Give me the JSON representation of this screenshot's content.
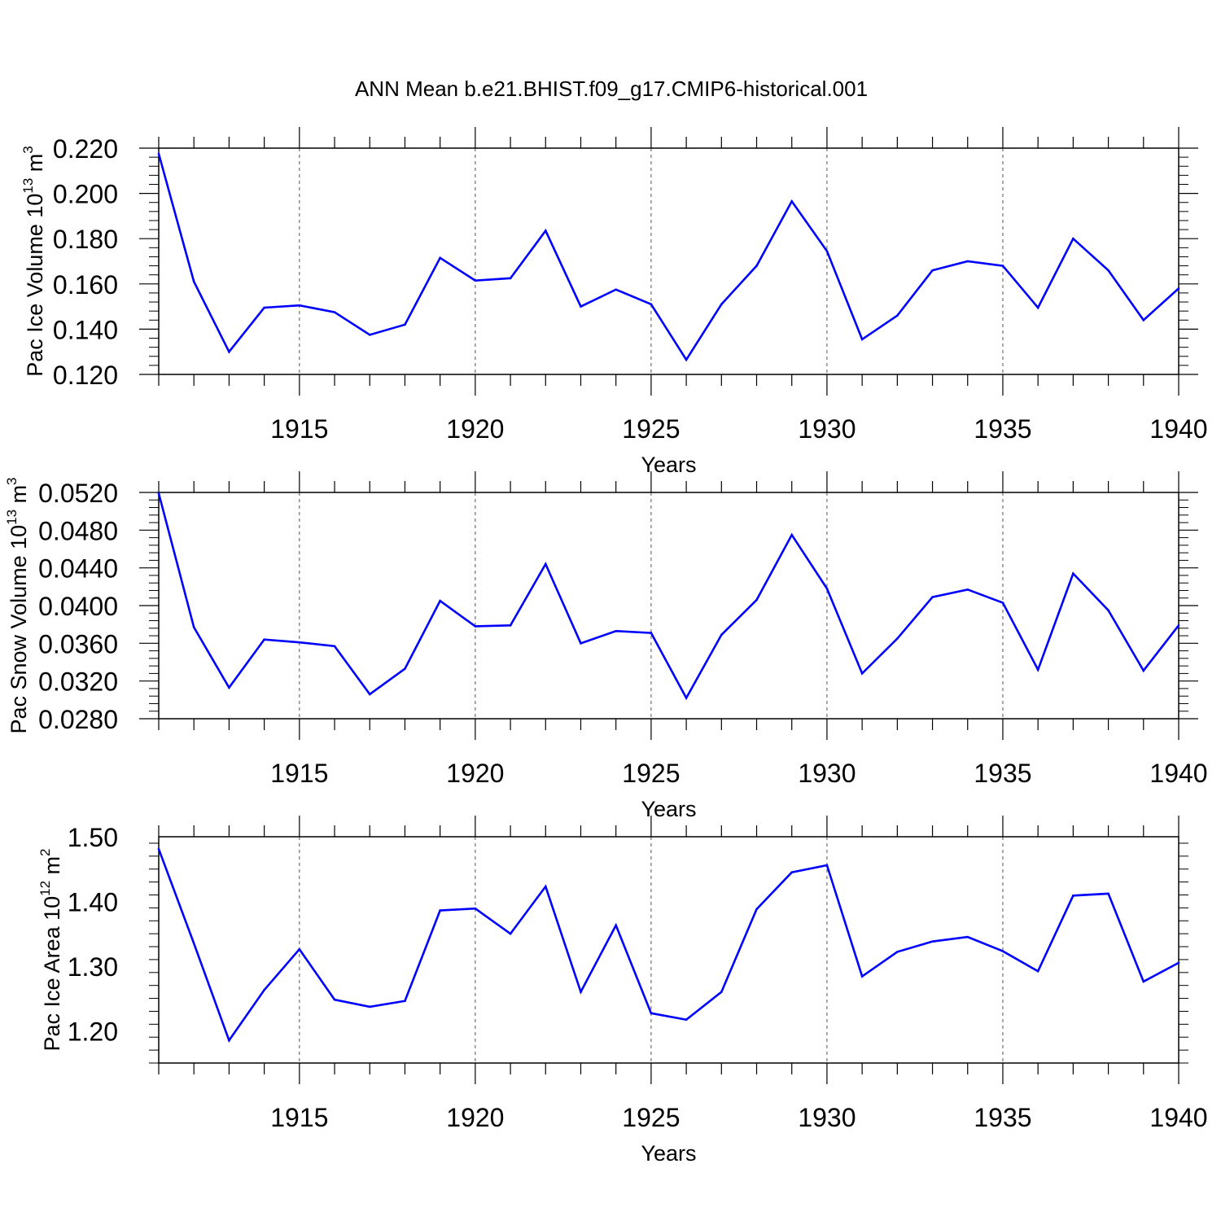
{
  "title": "ANN Mean b.e21.BHIST.f09_g17.CMIP6-historical.001",
  "colors": {
    "line": "#0000ff",
    "axis": "#000000",
    "grid": "#555555"
  },
  "chart_data": [
    {
      "type": "line",
      "name": "ice-volume",
      "ylabel": {
        "main": "Pac Ice Volume 10",
        "sup": "13",
        "unit": " m",
        "unit_sup": "3"
      },
      "xlabel": "Years",
      "xlim": [
        1911,
        1940
      ],
      "ylim": [
        0.12,
        0.22
      ],
      "yticks": [
        0.12,
        0.14,
        0.16,
        0.18,
        0.2,
        0.22
      ],
      "ytick_labels": [
        "0.120",
        "0.140",
        "0.160",
        "0.180",
        "0.200",
        "0.220"
      ],
      "xticks": [
        1915,
        1920,
        1925,
        1930,
        1935,
        1940
      ],
      "xtick_labels": [
        "1915",
        "1920",
        "1925",
        "1930",
        "1935",
        "1940"
      ],
      "x": [
        1911,
        1912,
        1913,
        1914,
        1915,
        1916,
        1917,
        1918,
        1919,
        1920,
        1921,
        1922,
        1923,
        1924,
        1925,
        1926,
        1927,
        1928,
        1929,
        1930,
        1931,
        1932,
        1933,
        1934,
        1935,
        1936,
        1937,
        1938,
        1939,
        1940
      ],
      "series": [
        {
          "name": "Pac Ice Volume",
          "values": [
            0.2175,
            0.161,
            0.13,
            0.1495,
            0.1505,
            0.1475,
            0.1375,
            0.142,
            0.1715,
            0.1615,
            0.1625,
            0.1835,
            0.15,
            0.1575,
            0.151,
            0.1265,
            0.151,
            0.168,
            0.1965,
            0.1745,
            0.1355,
            0.146,
            0.166,
            0.17,
            0.168,
            0.1495,
            0.18,
            0.166,
            0.144,
            0.158
          ]
        }
      ]
    },
    {
      "type": "line",
      "name": "snow-volume",
      "ylabel": {
        "main": "Pac Snow Volume 10",
        "sup": "13",
        "unit": " m",
        "unit_sup": "3"
      },
      "xlabel": "Years",
      "xlim": [
        1911,
        1940
      ],
      "ylim": [
        0.028,
        0.052
      ],
      "yticks": [
        0.028,
        0.032,
        0.036,
        0.04,
        0.044,
        0.048,
        0.052
      ],
      "ytick_labels": [
        "0.0280",
        "0.0320",
        "0.0360",
        "0.0400",
        "0.0440",
        "0.0480",
        "0.0520"
      ],
      "xticks": [
        1915,
        1920,
        1925,
        1930,
        1935,
        1940
      ],
      "xtick_labels": [
        "1915",
        "1920",
        "1925",
        "1930",
        "1935",
        "1940"
      ],
      "x": [
        1911,
        1912,
        1913,
        1914,
        1915,
        1916,
        1917,
        1918,
        1919,
        1920,
        1921,
        1922,
        1923,
        1924,
        1925,
        1926,
        1927,
        1928,
        1929,
        1930,
        1931,
        1932,
        1933,
        1934,
        1935,
        1936,
        1937,
        1938,
        1939,
        1940
      ],
      "series": [
        {
          "name": "Pac Snow Volume",
          "values": [
            0.0519,
            0.0377,
            0.0313,
            0.0364,
            0.0361,
            0.0357,
            0.0306,
            0.0333,
            0.0405,
            0.0378,
            0.0379,
            0.0444,
            0.036,
            0.0373,
            0.0371,
            0.0302,
            0.0369,
            0.0406,
            0.0475,
            0.0418,
            0.0328,
            0.0365,
            0.0409,
            0.0417,
            0.0403,
            0.0332,
            0.0434,
            0.0395,
            0.0331,
            0.0379
          ]
        }
      ]
    },
    {
      "type": "line",
      "name": "ice-area",
      "ylabel": {
        "main": "Pac Ice Area 10",
        "sup": "12",
        "unit": " m",
        "unit_sup": "2"
      },
      "xlabel": "Years",
      "xlim": [
        1911,
        1940
      ],
      "ylim": [
        1.15,
        1.5
      ],
      "yticks": [
        1.2,
        1.3,
        1.4,
        1.5
      ],
      "ytick_labels": [
        "1.20",
        "1.30",
        "1.40",
        "1.50"
      ],
      "xticks": [
        1915,
        1920,
        1925,
        1930,
        1935,
        1940
      ],
      "xtick_labels": [
        "1915",
        "1920",
        "1925",
        "1930",
        "1935",
        "1940"
      ],
      "x": [
        1911,
        1912,
        1913,
        1914,
        1915,
        1916,
        1917,
        1918,
        1919,
        1920,
        1921,
        1922,
        1923,
        1924,
        1925,
        1926,
        1927,
        1928,
        1929,
        1930,
        1931,
        1932,
        1933,
        1934,
        1935,
        1936,
        1937,
        1938,
        1939,
        1940
      ],
      "series": [
        {
          "name": "Pac Ice Area",
          "values": [
            1.481,
            1.335,
            1.185,
            1.263,
            1.326,
            1.248,
            1.237,
            1.246,
            1.386,
            1.389,
            1.35,
            1.423,
            1.26,
            1.363,
            1.227,
            1.217,
            1.26,
            1.388,
            1.445,
            1.456,
            1.284,
            1.322,
            1.338,
            1.345,
            1.323,
            1.292,
            1.409,
            1.412,
            1.276,
            1.305
          ]
        }
      ]
    }
  ]
}
